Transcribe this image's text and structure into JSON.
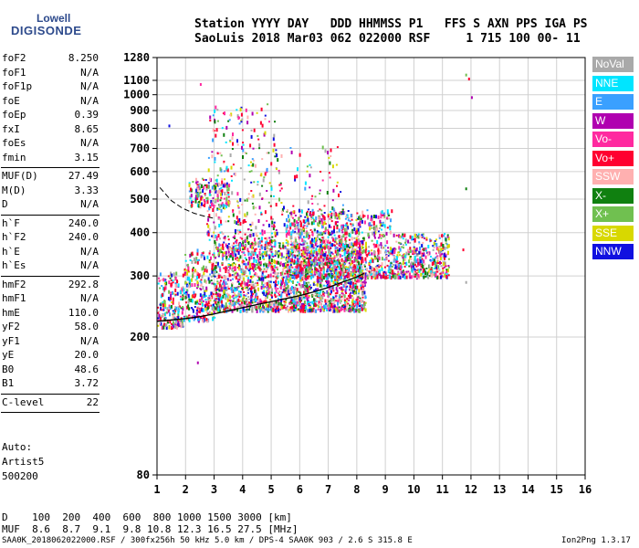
{
  "logo": {
    "line1": "Lowell",
    "line2": "DIGISONDE"
  },
  "header": {
    "line1": "Station YYYY DAY   DDD HHMMSS P1   FFS S AXN PPS IGA PS",
    "line2": "SaoLuis 2018 Mar03 062 022000 RSF     1 715 100 00- 11"
  },
  "params": [
    {
      "name": "foF2",
      "value": "8.250"
    },
    {
      "name": "foF1",
      "value": "N/A"
    },
    {
      "name": "foF1p",
      "value": "N/A"
    },
    {
      "name": "foE",
      "value": "N/A"
    },
    {
      "name": "foEp",
      "value": "0.39"
    },
    {
      "name": "fxI",
      "value": "8.65"
    },
    {
      "name": "foEs",
      "value": "N/A"
    },
    {
      "name": "fmin",
      "value": "3.15"
    },
    {
      "name": "MUF(D)",
      "value": "27.49"
    },
    {
      "name": "M(D)",
      "value": "3.33"
    },
    {
      "name": "D",
      "value": "N/A"
    },
    {
      "name": "h`F",
      "value": "240.0"
    },
    {
      "name": "h`F2",
      "value": "240.0"
    },
    {
      "name": "h`E",
      "value": "N/A"
    },
    {
      "name": "h`Es",
      "value": "N/A"
    },
    {
      "name": "hmF2",
      "value": "292.8"
    },
    {
      "name": "hmF1",
      "value": "N/A"
    },
    {
      "name": "hmE",
      "value": "110.0"
    },
    {
      "name": "yF2",
      "value": "58.0"
    },
    {
      "name": "yF1",
      "value": "N/A"
    },
    {
      "name": "yE",
      "value": "20.0"
    },
    {
      "name": "B0",
      "value": "48.6"
    },
    {
      "name": "B1",
      "value": "3.72"
    },
    {
      "name": "C-level",
      "value": "22"
    }
  ],
  "auto": {
    "line1": "Auto:",
    "line2": "Artist5",
    "line3": "500200"
  },
  "legend": [
    {
      "label": "NoVal",
      "color": "#a9a9a9"
    },
    {
      "label": "NNE",
      "color": "#00e5ff"
    },
    {
      "label": "E",
      "color": "#3aa0ff"
    },
    {
      "label": "W",
      "color": "#b000b0"
    },
    {
      "label": "Vo-",
      "color": "#ff2aa0"
    },
    {
      "label": "Vo+",
      "color": "#ff0030"
    },
    {
      "label": "SSW",
      "color": "#ffb0b0"
    },
    {
      "label": "X-",
      "color": "#108010"
    },
    {
      "label": "X+",
      "color": "#70c050"
    },
    {
      "label": "SSE",
      "color": "#d8d800"
    },
    {
      "label": "NNW",
      "color": "#1010e0"
    }
  ],
  "bottom": {
    "row1": "D    100  200  400  600  800 1000 1500 3000 [km]",
    "row2": "MUF  8.6  8.7  9.1  9.8 10.8 12.3 16.5 27.5 [MHz]"
  },
  "footer": {
    "left": "SAA0K_2018062022000.RSF / 300fx256h 50 kHz 5.0 km / DPS-4 SAA0K 903 / 2.6 S 315.8 E",
    "right": "Ion2Png 1.3.17"
  },
  "chart_data": {
    "type": "scatter",
    "title": "",
    "xlabel": "",
    "ylabel": "",
    "xlim": [
      1,
      16
    ],
    "ylim": [
      80,
      1280
    ],
    "yscale": "log",
    "x_ticks": [
      1,
      2,
      3,
      4,
      5,
      6,
      7,
      8,
      9,
      10,
      11,
      12,
      13,
      14,
      15,
      16
    ],
    "y_ticks": [
      80,
      200,
      300,
      400,
      500,
      600,
      700,
      800,
      900,
      1000,
      1100,
      1280
    ],
    "grid": true,
    "legend_position": "right",
    "trace": {
      "name": "",
      "x": [
        1.0,
        1.5,
        2.0,
        2.5,
        3.0,
        3.5,
        4.0,
        4.5,
        5.0,
        5.5,
        6.0,
        6.5,
        7.0,
        7.5,
        8.0,
        8.25
      ],
      "y": [
        222,
        224,
        226,
        229,
        233,
        238,
        243,
        248,
        253,
        258,
        263,
        270,
        278,
        288,
        298,
        305
      ]
    },
    "dashed_trace": {
      "x": [
        1.1,
        1.5,
        1.9,
        2.3,
        2.7,
        3.0
      ],
      "y": [
        540,
        495,
        470,
        455,
        445,
        440
      ]
    },
    "echo_regions": [
      {
        "x_min": 1.0,
        "x_max": 1.9,
        "y_min": 215,
        "y_max": 310,
        "density": 0.6
      },
      {
        "x_min": 1.9,
        "x_max": 3.0,
        "y_min": 225,
        "y_max": 360,
        "density": 0.7
      },
      {
        "x_min": 3.0,
        "x_max": 8.3,
        "y_min": 240,
        "y_max": 380,
        "density": 1.0
      },
      {
        "x_min": 5.5,
        "x_max": 9.2,
        "y_min": 300,
        "y_max": 470,
        "density": 0.7
      },
      {
        "x_min": 9.2,
        "x_max": 11.2,
        "y_min": 300,
        "y_max": 400,
        "density": 0.6
      },
      {
        "x_min": 2.7,
        "x_max": 5.2,
        "y_min": 380,
        "y_max": 950,
        "density": 0.35
      },
      {
        "x_min": 5.2,
        "x_max": 7.5,
        "y_min": 380,
        "y_max": 720,
        "density": 0.15
      },
      {
        "x_min": 2.1,
        "x_max": 3.5,
        "y_min": 480,
        "y_max": 580,
        "density": 0.3
      }
    ],
    "outliers": [
      {
        "x": 11.8,
        "y": 1150,
        "color": "#70c050"
      },
      {
        "x": 11.9,
        "y": 1120,
        "color": "#ff0030"
      },
      {
        "x": 12.0,
        "y": 990,
        "color": "#b000b0"
      },
      {
        "x": 1.4,
        "y": 820,
        "color": "#1010e0"
      },
      {
        "x": 11.8,
        "y": 540,
        "color": "#108010"
      },
      {
        "x": 11.7,
        "y": 360,
        "color": "#ff0030"
      },
      {
        "x": 11.8,
        "y": 290,
        "color": "#a9a9a9"
      },
      {
        "x": 2.4,
        "y": 170,
        "color": "#b000b0"
      },
      {
        "x": 2.5,
        "y": 1080,
        "color": "#ff2aa0"
      }
    ]
  }
}
